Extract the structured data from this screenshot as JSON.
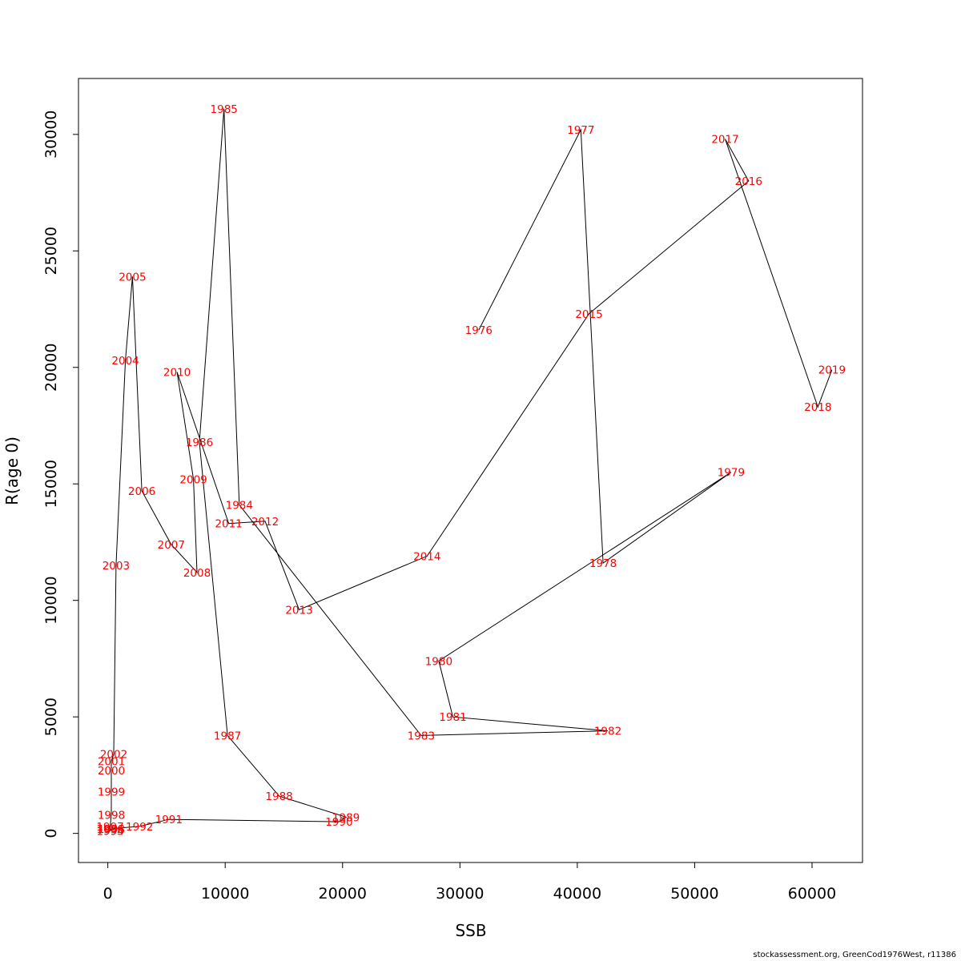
{
  "chart_data": {
    "type": "line",
    "xlabel": "SSB",
    "ylabel": "R(age 0)",
    "xlim": [
      -2500,
      64300
    ],
    "ylim": [
      -1250,
      32400
    ],
    "x_ticks": [
      0,
      10000,
      20000,
      30000,
      40000,
      50000,
      60000
    ],
    "y_ticks": [
      0,
      5000,
      10000,
      15000,
      20000,
      25000,
      30000
    ],
    "line_color": "#000000",
    "label_color": "#ff0000",
    "grid": false,
    "points": [
      {
        "year": "1976",
        "x": 31600,
        "y": 21600
      },
      {
        "year": "1977",
        "x": 40300,
        "y": 30200
      },
      {
        "year": "1978",
        "x": 42200,
        "y": 11600
      },
      {
        "year": "1979",
        "x": 53100,
        "y": 15500
      },
      {
        "year": "1980",
        "x": 28200,
        "y": 7400
      },
      {
        "year": "1981",
        "x": 29400,
        "y": 5000
      },
      {
        "year": "1982",
        "x": 42600,
        "y": 4400
      },
      {
        "year": "1983",
        "x": 26700,
        "y": 4200
      },
      {
        "year": "1984",
        "x": 11200,
        "y": 14100
      },
      {
        "year": "1985",
        "x": 9900,
        "y": 31100
      },
      {
        "year": "1986",
        "x": 7800,
        "y": 16800
      },
      {
        "year": "1987",
        "x": 10200,
        "y": 4200
      },
      {
        "year": "1988",
        "x": 14600,
        "y": 1600
      },
      {
        "year": "1989",
        "x": 20300,
        "y": 700
      },
      {
        "year": "1990",
        "x": 19700,
        "y": 500
      },
      {
        "year": "1991",
        "x": 5200,
        "y": 600
      },
      {
        "year": "1992",
        "x": 2700,
        "y": 300
      },
      {
        "year": "1993",
        "x": 300,
        "y": 200
      },
      {
        "year": "1994",
        "x": 200,
        "y": 100
      },
      {
        "year": "1995",
        "x": 200,
        "y": 100
      },
      {
        "year": "1996",
        "x": 200,
        "y": 200
      },
      {
        "year": "1997",
        "x": 200,
        "y": 300
      },
      {
        "year": "1998",
        "x": 300,
        "y": 800
      },
      {
        "year": "1999",
        "x": 300,
        "y": 1800
      },
      {
        "year": "2000",
        "x": 300,
        "y": 2700
      },
      {
        "year": "2001",
        "x": 300,
        "y": 3100
      },
      {
        "year": "2002",
        "x": 500,
        "y": 3400
      },
      {
        "year": "2003",
        "x": 700,
        "y": 11500
      },
      {
        "year": "2004",
        "x": 1500,
        "y": 20300
      },
      {
        "year": "2005",
        "x": 2100,
        "y": 23900
      },
      {
        "year": "2006",
        "x": 2900,
        "y": 14700
      },
      {
        "year": "2007",
        "x": 5400,
        "y": 12400
      },
      {
        "year": "2008",
        "x": 7600,
        "y": 11200
      },
      {
        "year": "2009",
        "x": 7300,
        "y": 15200
      },
      {
        "year": "2010",
        "x": 5900,
        "y": 19800
      },
      {
        "year": "2011",
        "x": 10300,
        "y": 13300
      },
      {
        "year": "2012",
        "x": 13400,
        "y": 13400
      },
      {
        "year": "2013",
        "x": 16300,
        "y": 9600
      },
      {
        "year": "2014",
        "x": 27200,
        "y": 11900
      },
      {
        "year": "2015",
        "x": 41000,
        "y": 22300
      },
      {
        "year": "2016",
        "x": 54600,
        "y": 28000
      },
      {
        "year": "2017",
        "x": 52600,
        "y": 29800
      },
      {
        "year": "2018",
        "x": 60500,
        "y": 18300
      },
      {
        "year": "2019",
        "x": 61700,
        "y": 19900
      }
    ]
  },
  "footer": "stockassessment.org, GreenCod1976West, r11386"
}
